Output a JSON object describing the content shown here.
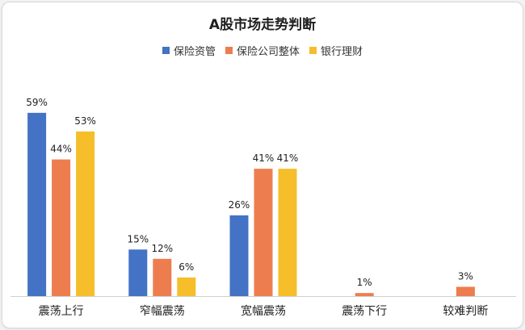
{
  "chart_data": {
    "type": "bar",
    "title": "A股市场走势判断",
    "categories": [
      "震荡上行",
      "窄幅震荡",
      "宽幅震荡",
      "震荡下行",
      "较难判断"
    ],
    "series": [
      {
        "name": "保险资管",
        "color": "#4472C4",
        "values": [
          59,
          15,
          26,
          null,
          null
        ],
        "labels": [
          "59%",
          "15%",
          "26%",
          "",
          ""
        ]
      },
      {
        "name": "保险公司整体",
        "color": "#ED7D4F",
        "values": [
          44,
          12,
          41,
          1,
          3
        ],
        "labels": [
          "44%",
          "12%",
          "41%",
          "1%",
          "3%"
        ]
      },
      {
        "name": "银行理财",
        "color": "#F5BE2A",
        "values": [
          53,
          6,
          41,
          null,
          null
        ],
        "labels": [
          "53%",
          "6%",
          "41%",
          "",
          ""
        ]
      }
    ],
    "ylim": [
      0,
      65
    ],
    "legend_position": "top",
    "grid": false
  }
}
